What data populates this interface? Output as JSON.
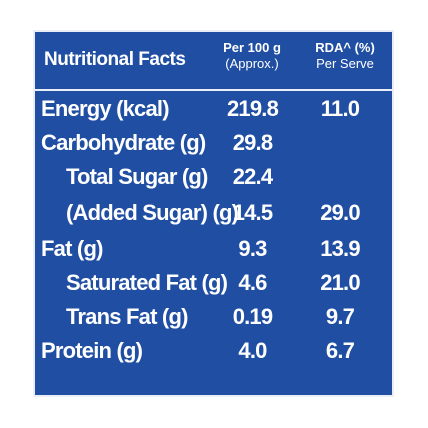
{
  "panel": {
    "title": "Nutritional Facts",
    "col_per100_line1": "Per 100 g",
    "col_per100_line2": "(Approx.)",
    "col_rda_line1": "RDA^ (%)",
    "col_rda_line2": "Per Serve"
  },
  "rows": [
    {
      "label": "Energy (kcal)",
      "per100": "219.8",
      "rda": "11.0"
    },
    {
      "label": "Carbohydrate (g)",
      "per100": "29.8",
      "rda": ""
    },
    {
      "label": "Total Sugar (g)",
      "per100": "22.4",
      "rda": ""
    },
    {
      "label": "(Added Sugar) (g)",
      "per100": "14.5",
      "rda": "29.0"
    },
    {
      "label": "Fat (g)",
      "per100": "9.3",
      "rda": "13.9"
    },
    {
      "label": "Saturated Fat (g)",
      "per100": "4.6",
      "rda": "21.0"
    },
    {
      "label": "Trans Fat (g)",
      "per100": "0.19",
      "rda": "9.7"
    },
    {
      "label": "Protein (g)",
      "per100": "4.0",
      "rda": "6.7"
    }
  ],
  "colors": {
    "panel_bg": "#1f4ea3",
    "text": "#ffffff",
    "border": "#e9eef7"
  }
}
